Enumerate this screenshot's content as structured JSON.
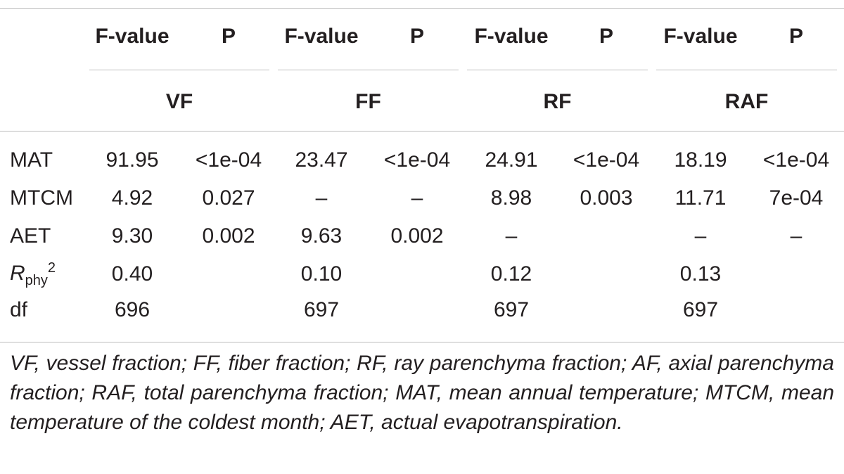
{
  "table": {
    "column_headers": [
      "F-value",
      "P",
      "F-value",
      "P",
      "F-value",
      "P",
      "F-value",
      "P"
    ],
    "groups": [
      "VF",
      "FF",
      "RF",
      "RAF"
    ],
    "rows": [
      {
        "label": "MAT",
        "cells": [
          "91.95",
          "<1e-04",
          "23.47",
          "<1e-04",
          "24.91",
          "<1e-04",
          "18.19",
          "<1e-04"
        ]
      },
      {
        "label": "MTCM",
        "cells": [
          "4.92",
          "0.027",
          "–",
          "–",
          "8.98",
          "0.003",
          "11.71",
          "7e-04"
        ]
      },
      {
        "label": "AET",
        "cells": [
          "9.30",
          "0.002",
          "9.63",
          "0.002",
          "–",
          null,
          "–",
          "–"
        ]
      },
      {
        "label": {
          "base": "R",
          "sub": "phy",
          "sup": "2"
        },
        "cells": [
          "0.40",
          null,
          "0.10",
          null,
          "0.12",
          null,
          "0.13",
          null
        ]
      },
      {
        "label": "df",
        "cells": [
          "696",
          null,
          "697",
          null,
          "697",
          null,
          "697",
          null
        ]
      }
    ],
    "footnote": "VF, vessel fraction; FF, fiber fraction; RF, ray parenchyma fraction; AF, axial parenchyma fraction; RAF, total parenchyma fraction; MAT, mean annual temperature; MTCM, mean temperature of the coldest month; AET, actual evapotranspiration."
  }
}
